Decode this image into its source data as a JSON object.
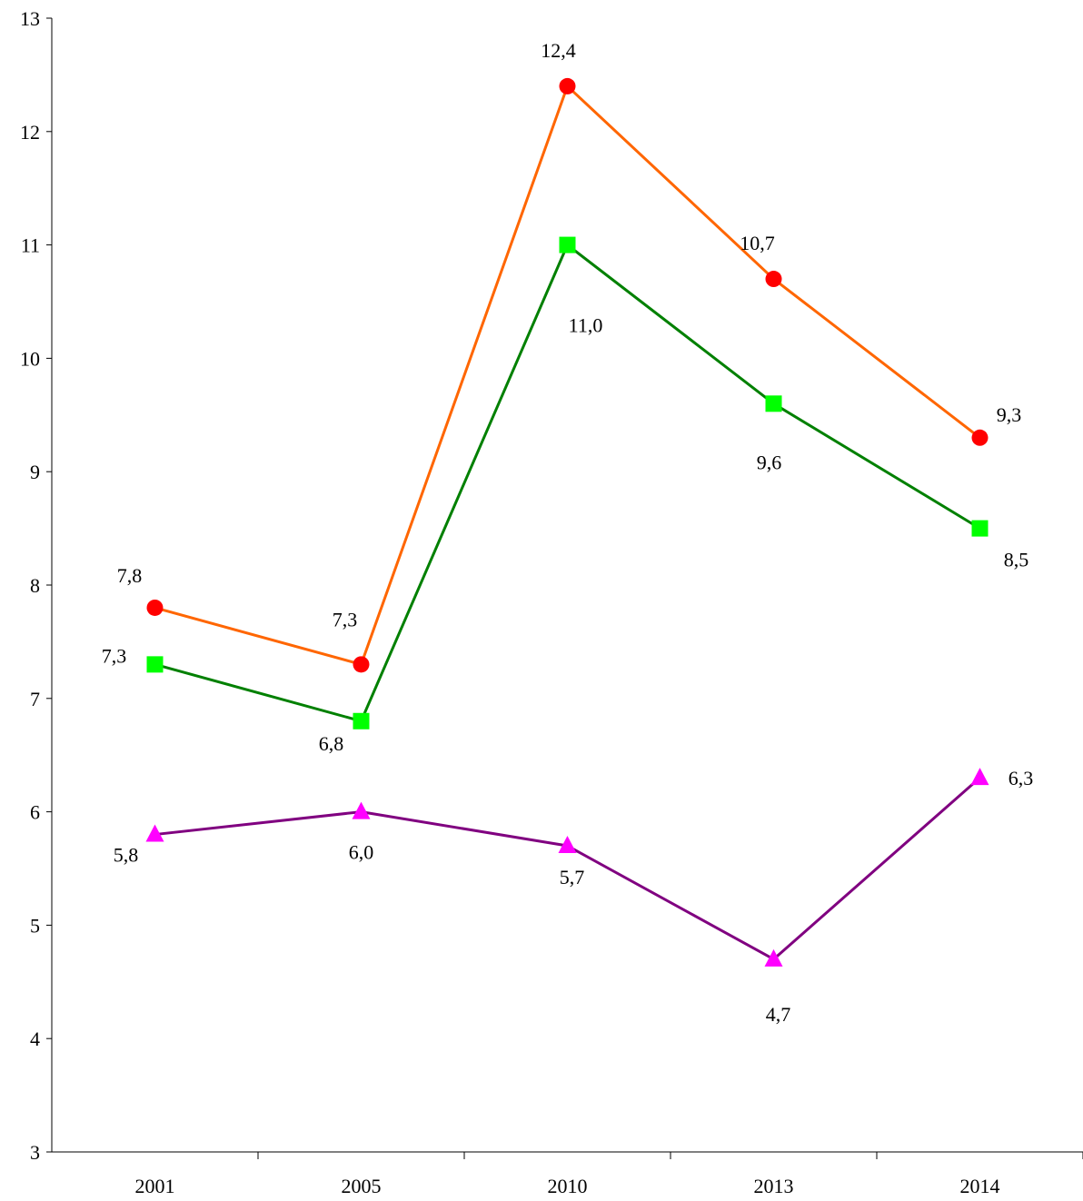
{
  "chart_data": {
    "type": "line",
    "title": "",
    "xlabel": "",
    "ylabel": "",
    "categories": [
      "2001",
      "2005",
      "2010",
      "2013",
      "2014"
    ],
    "ylim": [
      3,
      13
    ],
    "yticks": [
      3,
      4,
      5,
      6,
      7,
      8,
      9,
      10,
      11,
      12,
      13
    ],
    "grid": false,
    "legend": "none",
    "series": [
      {
        "values": [
          7.8,
          7.3,
          12.4,
          10.7,
          9.3
        ],
        "labels": [
          "7,8",
          "7,3",
          "12,4",
          "10,7",
          "9,3"
        ],
        "line_color": "#ff6600",
        "marker": "circle",
        "marker_color": "#ff0000"
      },
      {
        "values": [
          7.3,
          6.8,
          11.0,
          9.6,
          8.5
        ],
        "labels": [
          "7,3",
          "6,8",
          "11,0",
          "9,6",
          "8,5"
        ],
        "line_color": "#008000",
        "marker": "square",
        "marker_color": "#00ff00"
      },
      {
        "values": [
          5.8,
          6.0,
          5.7,
          4.7,
          6.3
        ],
        "labels": [
          "5,8",
          "6,0",
          "5,7",
          "4,7",
          "6,3"
        ],
        "line_color": "#800080",
        "marker": "triangle",
        "marker_color": "#ff00ff"
      }
    ]
  }
}
